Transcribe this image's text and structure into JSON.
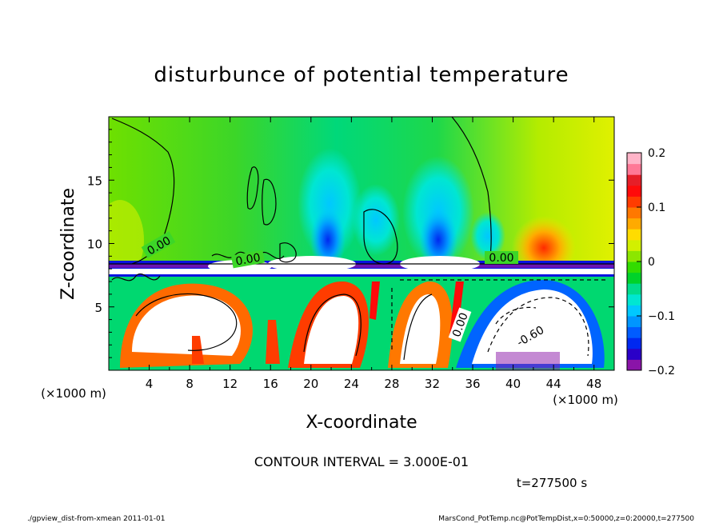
{
  "chart_data": {
    "type": "heatmap",
    "title": "disturbunce of potential temperature",
    "xlabel": "X-coordinate",
    "ylabel": "Z-coordinate",
    "x_unit_label": "(×1000 m)",
    "z_unit_label": "(×1000 m)",
    "xlim": [
      0,
      50
    ],
    "ylim": [
      0,
      20
    ],
    "x_ticks": [
      "4",
      "8",
      "12",
      "16",
      "20",
      "24",
      "28",
      "32",
      "36",
      "40",
      "44",
      "48"
    ],
    "y_ticks": [
      "5",
      "10",
      "15"
    ],
    "colorbar": {
      "range": [
        -0.2,
        0.2
      ],
      "tick_labels": [
        "0.2",
        "0.1",
        "0",
        "−0.1",
        "−0.2"
      ],
      "colors": [
        "#8a14a8",
        "#2a00c8",
        "#0028f0",
        "#005cff",
        "#0096ff",
        "#00c8ff",
        "#00e6d2",
        "#00dc8c",
        "#00d22a",
        "#32dc00",
        "#8ce600",
        "#d2f000",
        "#ffdc00",
        "#ffaa00",
        "#ff7800",
        "#ff3c00",
        "#ff0a0a",
        "#e61e28",
        "#ff7896",
        "#ffb4c8"
      ]
    },
    "contour_labels": [
      "0.00",
      "0.00",
      "0.00",
      "0.00",
      "-0.60"
    ],
    "contour_interval_text": "CONTOUR INTERVAL = 3.000E-01",
    "time_text": "t=277500 s",
    "footer_left": "./gpview_dist-from-xmean  2011-01-01",
    "footer_right": "MarsCond_PotTemp.nc@PotTempDist,x=0:50000,z=0:20000,t=277500"
  }
}
